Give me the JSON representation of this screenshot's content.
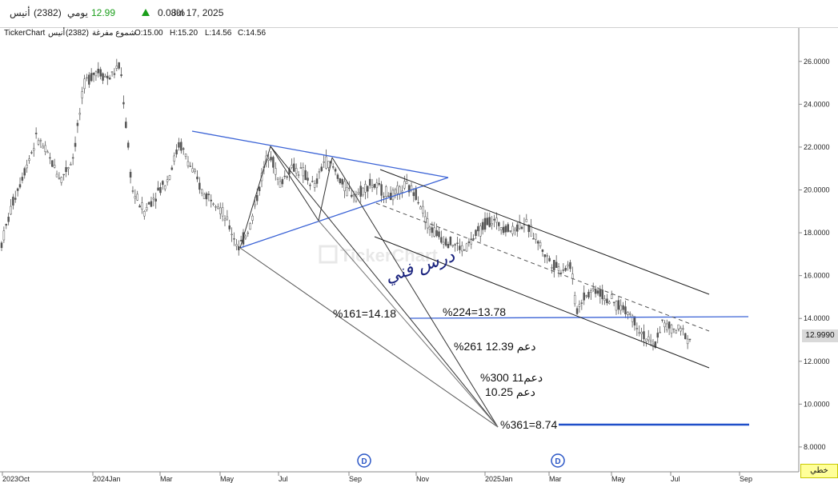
{
  "header": {
    "name": "أنيس",
    "code": "(2382)",
    "period": "يومي",
    "price": "12.99",
    "change_pct": "0.08%",
    "date": "Jul 17, 2025"
  },
  "subheader": {
    "source": "TickerChart",
    "name": "أنيس",
    "code": "(2382)",
    "chart_type": "شموع مفرغة",
    "open": "O:15.00",
    "high": "H:15.20",
    "low": "L:14.56",
    "close": "C:14.56"
  },
  "last_price_tag": "12.9990",
  "scale_button": "خطي",
  "watermark": "TickerChart",
  "handwritten": "درس فني",
  "chart_data": {
    "type": "candlestick",
    "title": "",
    "y_ticks": [
      "26.0000",
      "24.0000",
      "22.0000",
      "20.0000",
      "18.0000",
      "16.0000",
      "14.0000",
      "12.0000",
      "10.0000",
      "8.0000"
    ],
    "x_ticks": [
      "2023Oct",
      "2024Jan",
      "Mar",
      "May",
      "Jul",
      "Sep",
      "Nov",
      "2025Jan",
      "Mar",
      "May",
      "Jul",
      "Sep"
    ],
    "ylim": [
      7.4,
      27.0
    ],
    "grid": false,
    "price_path": [
      [
        0,
        17.5
      ],
      [
        0.5,
        19.5
      ],
      [
        1.0,
        21.0
      ],
      [
        1.5,
        22.5
      ],
      [
        2.0,
        21.5
      ],
      [
        2.5,
        20.5
      ],
      [
        3.0,
        21.5
      ],
      [
        3.5,
        25.0
      ],
      [
        4.0,
        25.6
      ],
      [
        4.5,
        25.2
      ],
      [
        5.0,
        25.8
      ],
      [
        5.5,
        20.0
      ],
      [
        6.0,
        19.0
      ],
      [
        6.5,
        19.8
      ],
      [
        7.0,
        20.5
      ],
      [
        7.5,
        22.2
      ],
      [
        8.0,
        21.0
      ],
      [
        8.5,
        19.8
      ],
      [
        9.0,
        19.6
      ],
      [
        9.5,
        18.5
      ],
      [
        10.0,
        17.3
      ],
      [
        10.5,
        18.4
      ],
      [
        11.0,
        20.8
      ],
      [
        11.3,
        21.9
      ],
      [
        11.7,
        20.2
      ],
      [
        12.2,
        21.1
      ],
      [
        12.7,
        20.8
      ],
      [
        13.2,
        20.1
      ],
      [
        13.6,
        21.4
      ],
      [
        14.0,
        21.0
      ],
      [
        14.5,
        20.0
      ],
      [
        15.0,
        19.8
      ],
      [
        15.5,
        20.3
      ],
      [
        16.0,
        20.0
      ],
      [
        16.5,
        19.7
      ],
      [
        17.0,
        20.2
      ],
      [
        17.5,
        19.8
      ],
      [
        18.0,
        18.3
      ],
      [
        18.5,
        17.8
      ],
      [
        19.0,
        17.5
      ],
      [
        19.5,
        17.2
      ],
      [
        20.0,
        17.9
      ],
      [
        20.5,
        18.6
      ],
      [
        21.0,
        18.4
      ],
      [
        21.5,
        18.1
      ],
      [
        22.0,
        18.5
      ],
      [
        22.5,
        17.8
      ],
      [
        23.0,
        16.8
      ],
      [
        23.5,
        16.3
      ],
      [
        24.0,
        16.5
      ],
      [
        24.2,
        14.3
      ],
      [
        24.5,
        15.0
      ],
      [
        25.0,
        15.4
      ],
      [
        25.5,
        14.9
      ],
      [
        26.0,
        14.6
      ],
      [
        26.5,
        14.2
      ],
      [
        27.0,
        13.3
      ],
      [
        27.5,
        12.6
      ],
      [
        27.8,
        13.8
      ],
      [
        28.2,
        13.5
      ],
      [
        28.7,
        13.4
      ],
      [
        29.0,
        12.99
      ]
    ],
    "annotations": [
      {
        "text": "%161=14.18",
        "price": 14.18
      },
      {
        "text": "%224=13.78",
        "price": 13.78
      },
      {
        "text": "%261 دعم 12.39",
        "price": 12.39
      },
      {
        "text": "%300 11دعم",
        "price": 11.0
      },
      {
        "text": "دعم 10.25",
        "price": 10.25
      },
      {
        "text": "%361=8.74",
        "price": 8.74
      }
    ],
    "dividend_markers": [
      "D",
      "D"
    ]
  },
  "colors": {
    "candle": "#555555",
    "trend_blue": "#3c64d6",
    "channel": "#222222",
    "up": "#1a9e1a",
    "level_blue": "#1f4fc9"
  }
}
